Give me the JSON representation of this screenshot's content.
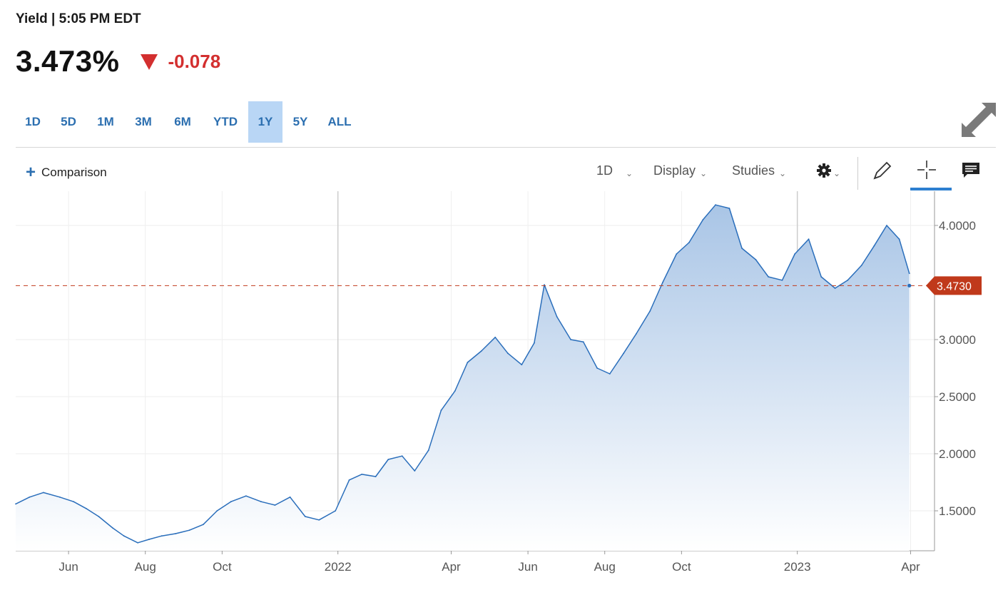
{
  "header": {
    "label": "Yield | 5:05 PM EDT",
    "value": "3.473%",
    "change": "-0.078",
    "change_icon": "down-triangle-icon",
    "change_color": "#d32f2f"
  },
  "ranges": {
    "items": [
      "1D",
      "5D",
      "1M",
      "3M",
      "6M",
      "YTD",
      "1Y",
      "5Y",
      "ALL"
    ],
    "active": "1Y"
  },
  "toolbar": {
    "comparison_label": "Comparison",
    "interval_label": "1D",
    "display_label": "Display",
    "studies_label": "Studies",
    "icons": [
      "gear-icon",
      "pencil-icon",
      "crosshair-icon",
      "comment-icon",
      "expand-icon"
    ]
  },
  "colors": {
    "line": "#2a6ebb",
    "fill_top": "#a9c5e6",
    "fill_bottom": "#ffffff",
    "last_price": "#c0391b",
    "active_range_bg": "#b9d6f5"
  },
  "chart_data": {
    "type": "area",
    "x_labels": [
      "Jun",
      "Aug",
      "Oct",
      "2022",
      "Apr",
      "Jun",
      "Aug",
      "Oct",
      "2023",
      "Apr"
    ],
    "x_label_dates": [
      "2021-06-01",
      "2021-08-01",
      "2021-10-01",
      "2022-01-01",
      "2022-04-01",
      "2022-06-01",
      "2022-08-01",
      "2022-10-01",
      "2023-01-01",
      "2023-04-01"
    ],
    "y_ticks": [
      "4.0000",
      "3.0000",
      "2.5000",
      "2.0000",
      "1.5000"
    ],
    "ylim": [
      1.15,
      4.3
    ],
    "xlim": [
      "2021-04-20",
      "2023-04-20"
    ],
    "last_value": "3.4730",
    "last_value_num": 3.473,
    "series": [
      {
        "x": [
          "2021-04-20",
          "2021-05-01",
          "2021-05-12",
          "2021-05-25",
          "2021-06-05",
          "2021-06-15",
          "2021-06-25",
          "2021-07-06",
          "2021-07-15",
          "2021-07-26",
          "2021-08-04",
          "2021-08-14",
          "2021-08-25",
          "2021-09-05",
          "2021-09-16",
          "2021-09-27",
          "2021-10-08",
          "2021-10-20",
          "2021-11-01",
          "2021-11-12",
          "2021-11-24",
          "2021-12-06",
          "2021-12-17",
          "2021-12-30",
          "2022-01-10",
          "2022-01-20",
          "2022-01-31",
          "2022-02-10",
          "2022-02-21",
          "2022-03-03",
          "2022-03-14",
          "2022-03-24",
          "2022-04-04",
          "2022-04-14",
          "2022-04-25",
          "2022-05-06",
          "2022-05-16",
          "2022-05-27",
          "2022-06-06",
          "2022-06-14",
          "2022-06-24",
          "2022-07-05",
          "2022-07-15",
          "2022-07-26",
          "2022-08-05",
          "2022-08-16",
          "2022-08-26",
          "2022-09-06",
          "2022-09-16",
          "2022-09-27",
          "2022-10-07",
          "2022-10-18",
          "2022-10-28",
          "2022-11-08",
          "2022-11-18",
          "2022-11-29",
          "2022-12-09",
          "2022-12-20",
          "2022-12-30",
          "2023-01-10",
          "2023-01-20",
          "2023-01-31",
          "2023-02-10",
          "2023-02-21",
          "2023-03-03",
          "2023-03-13",
          "2023-03-23",
          "2023-03-31"
        ],
        "values": [
          1.56,
          1.62,
          1.66,
          1.62,
          1.58,
          1.52,
          1.45,
          1.35,
          1.28,
          1.22,
          1.25,
          1.28,
          1.3,
          1.33,
          1.38,
          1.5,
          1.58,
          1.63,
          1.58,
          1.55,
          1.62,
          1.45,
          1.42,
          1.5,
          1.77,
          1.82,
          1.8,
          1.95,
          1.98,
          1.85,
          2.03,
          2.38,
          2.55,
          2.8,
          2.9,
          3.02,
          2.88,
          2.78,
          2.97,
          3.48,
          3.2,
          3.0,
          2.98,
          2.75,
          2.7,
          2.88,
          3.05,
          3.25,
          3.5,
          3.75,
          3.85,
          4.05,
          4.18,
          4.15,
          3.8,
          3.7,
          3.55,
          3.52,
          3.75,
          3.88,
          3.55,
          3.45,
          3.52,
          3.65,
          3.82,
          4.0,
          3.88,
          3.58
        ]
      }
    ]
  }
}
